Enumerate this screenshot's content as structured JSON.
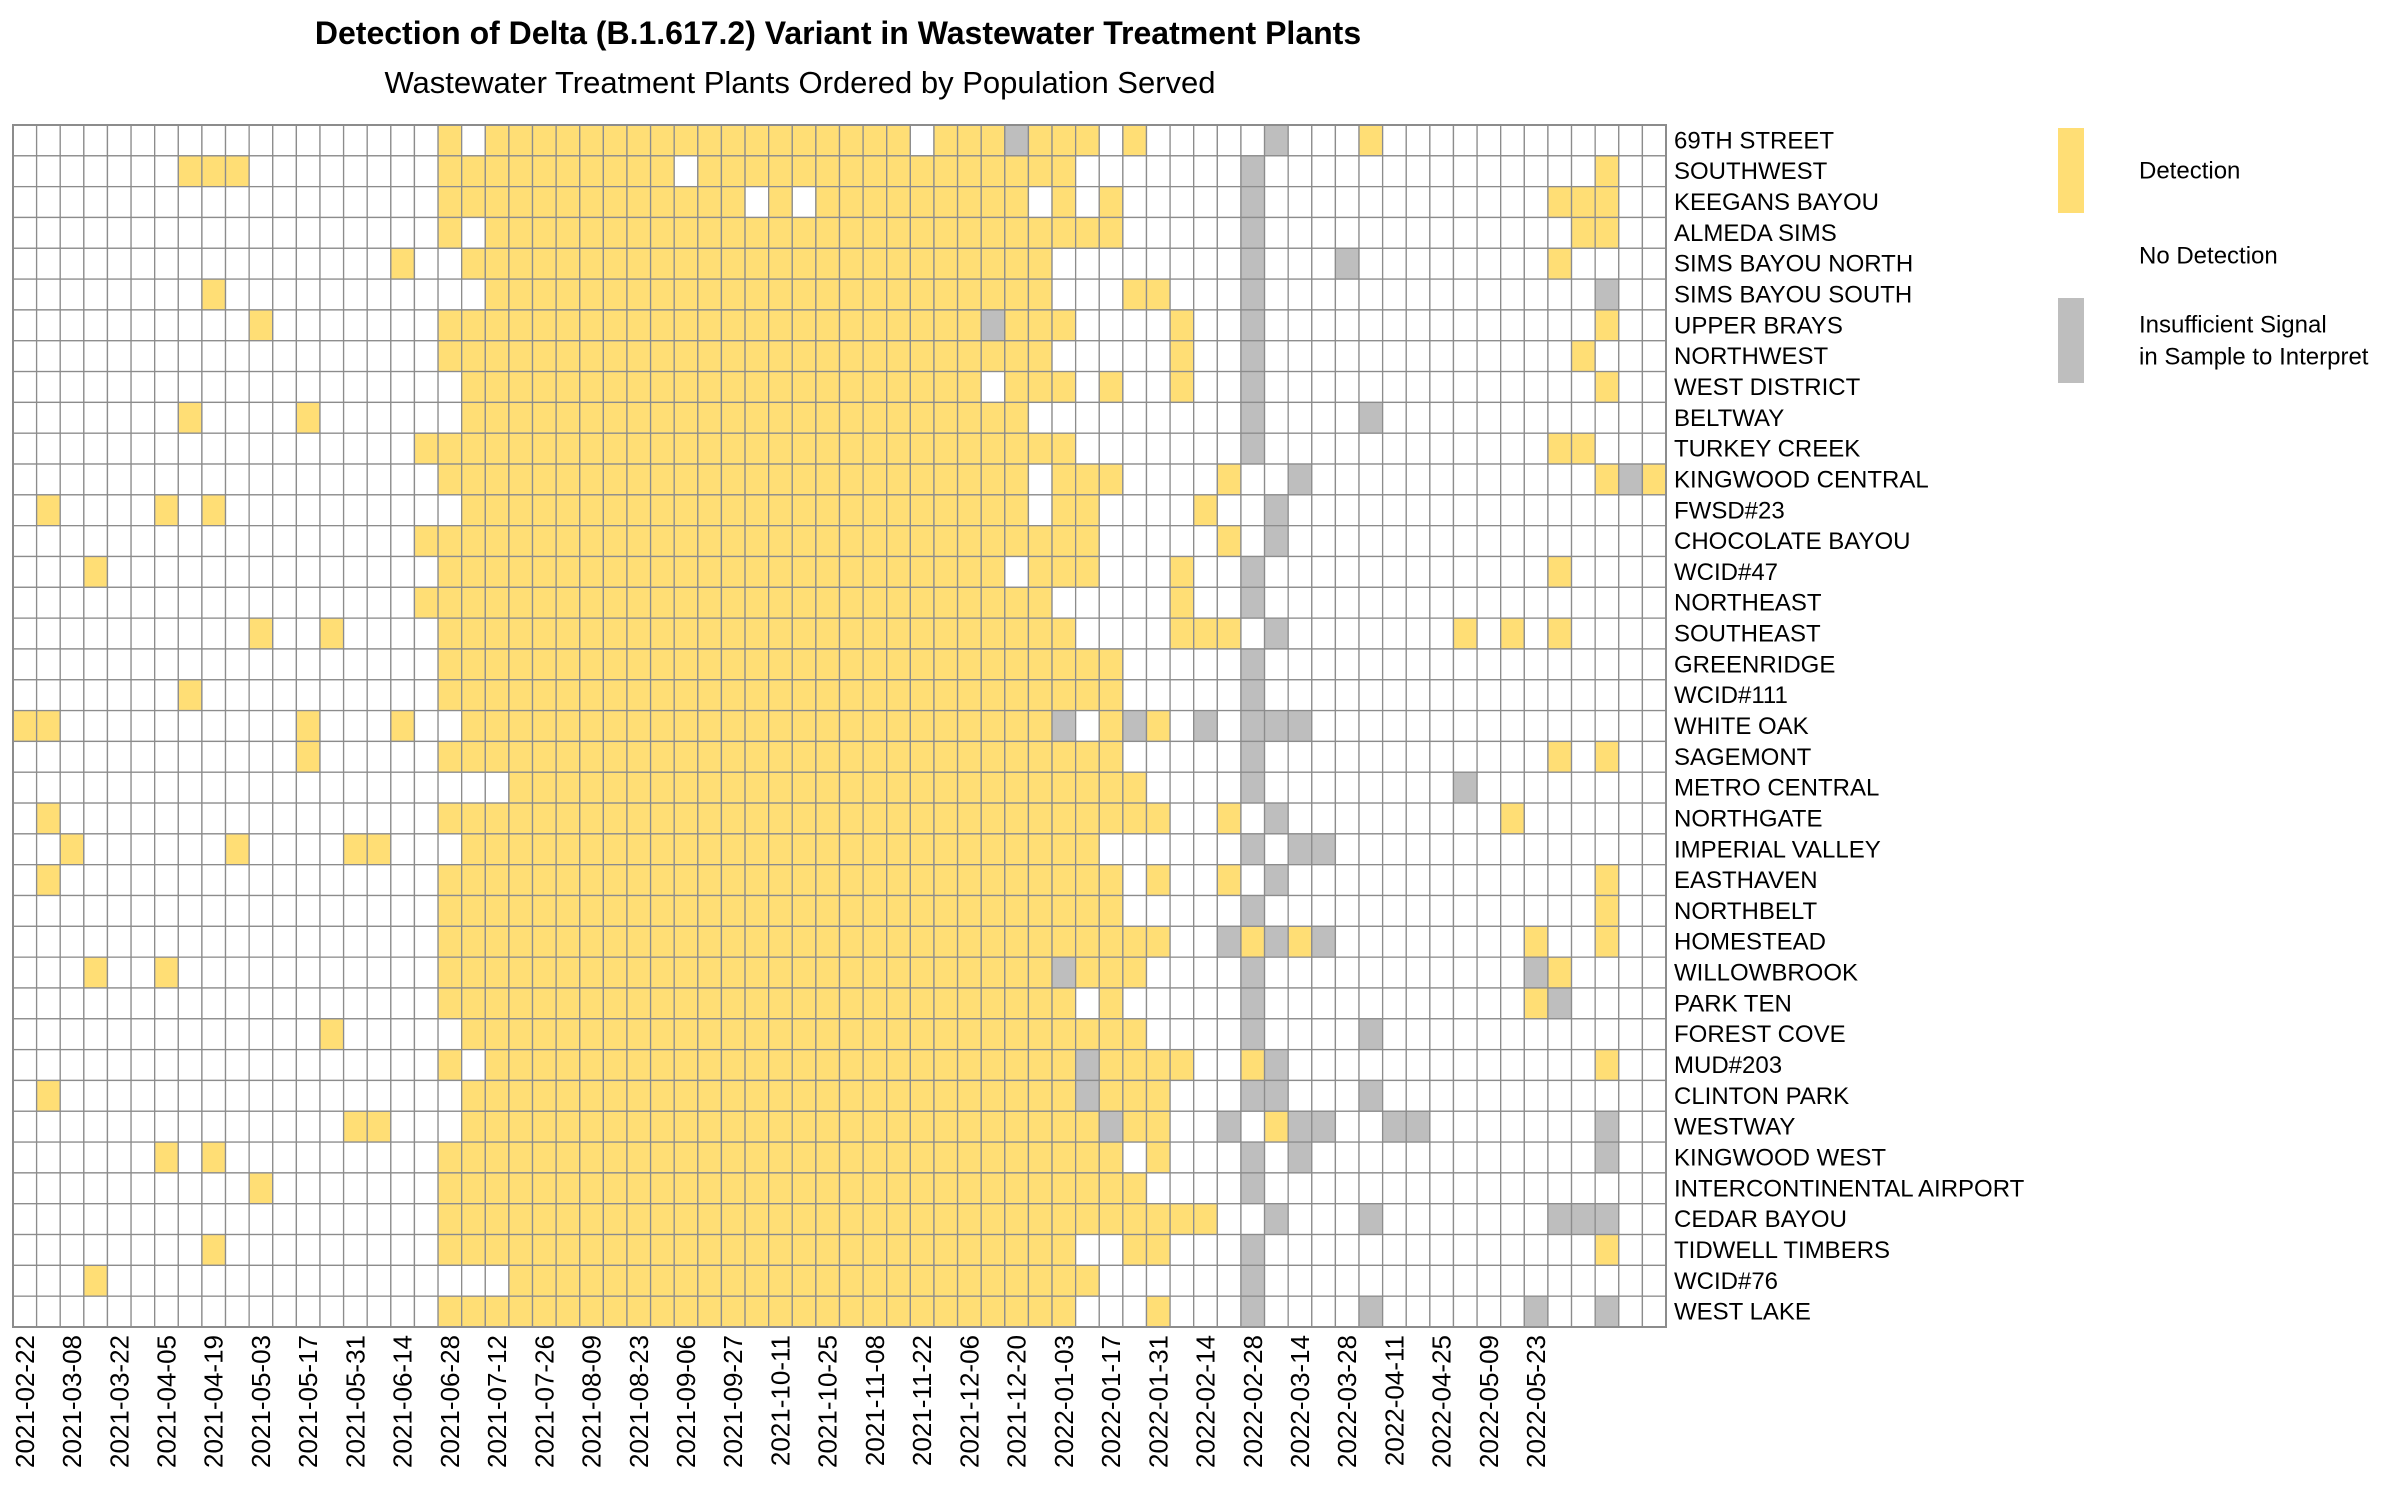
{
  "chart_data": {
    "type": "heatmap",
    "title": "Detection of Delta (B.1.617.2) Variant in Wastewater Treatment Plants",
    "subtitle": "Wastewater Treatment Plants Ordered by Population Served",
    "x_tick_labels": [
      "2021-02-22",
      "2021-03-08",
      "2021-03-22",
      "2021-04-05",
      "2021-04-19",
      "2021-05-03",
      "2021-05-17",
      "2021-05-31",
      "2021-06-14",
      "2021-06-28",
      "2021-07-12",
      "2021-07-26",
      "2021-08-09",
      "2021-08-23",
      "2021-09-06",
      "2021-09-27",
      "2021-10-11",
      "2021-10-25",
      "2021-11-08",
      "2021-11-22",
      "2021-12-06",
      "2021-12-20",
      "2022-01-03",
      "2022-01-17",
      "2022-01-31",
      "2022-02-14",
      "2022-02-28",
      "2022-03-14",
      "2022-03-28",
      "2022-04-11",
      "2022-04-25",
      "2022-05-09",
      "2022-05-23"
    ],
    "columns_per_tick": 2,
    "plants": [
      "69TH STREET",
      "SOUTHWEST",
      "KEEGANS BAYOU",
      "ALMEDA SIMS",
      "SIMS BAYOU NORTH",
      "SIMS BAYOU SOUTH",
      "UPPER BRAYS",
      "NORTHWEST",
      "WEST DISTRICT",
      "BELTWAY",
      "TURKEY CREEK",
      "KINGWOOD CENTRAL",
      "FWSD#23",
      "CHOCOLATE BAYOU",
      "WCID#47",
      "NORTHEAST",
      "SOUTHEAST",
      "GREENRIDGE",
      "WCID#111",
      "WHITE OAK",
      "SAGEMONT",
      "METRO CENTRAL",
      "NORTHGATE",
      "IMPERIAL VALLEY",
      "EASTHAVEN",
      "NORTHBELT",
      "HOMESTEAD",
      "WILLOWBROOK",
      "PARK TEN",
      "FOREST COVE",
      "MUD#203",
      "CLINTON PARK",
      "WESTWAY",
      "KINGWOOD WEST",
      "INTERCONTINENTAL AIRPORT",
      "CEDAR BAYOU",
      "TIDWELL TIMBERS",
      "WCID#76",
      "WEST LAKE"
    ],
    "value_codes": {
      "Y": "Detection",
      "N": "No Detection",
      "G": "Insufficient Signal in Sample to Interpret"
    },
    "rows": [
      "NNNNNNNNNNNNNNNNNNYNYYYYYYYYYYYYYYYYYYNYYYGYYYNYNNNNNGNNNYNNNNNNNNNN",
      "NNNNNNNYYYNNNNNNNNYYYYYYYYYYNYYYYYYYYYYYYYYYYNNNNNNNGNNNNNNNNNNNNNNY",
      "NNNNNNNNNNNNNNNNNNYYYYYYYYYYYYYNYNYYYYYYYYYNYNYNNNNNGNNNNNNNNNNNNYYY",
      "NNNNNNNNNNNNNNNNNNYNYYYYYYYYYYYYYYYYYYYYYYYYYYYNNNNNGNNNNNNNNNNNNNYY",
      "NNNNNNNNNNNNNNNNYNNYYYYYYYYYYYYYYYYYYYYYYYYYNNNNNNNNGNNNGNNNNNNNNYNN",
      "NNNNNNNNYNNNNNNNNNNNYYYYYYYYYYYYYYYYYYYYYYYYNNNYYNNNGNNNNNNNNNNNNNNG",
      "NNNNNNNNNNYNNNNNNNYYYYYYYYYYYYYYYYYYYYYYYGYYYNNNNYNNGNNNNNNNNNNNNNNY",
      "NNNNNNNNNNNNNNNNNNYYYYYYYYYYYYYYYYYYYYYYYYYYNNNNNYNNGNNNNNNNNNNNNNYN",
      "NNNNNNNNNNNNNNNNNNNYYYYYYYYYYYYYYYYYYYYYYNYYYNYNNYNNGNNNNNNNNNNNNNNY",
      "NNNNNNNYNNNNYNNNNNNYYYYYYYYYYYYYYYYYYYYYYYYNNNNNNNNNGNNNNGNNNNNNNNNN",
      "NNNNNNNNNNNNNNNNNYYYYYYYYYYYYYYYYYYYYYYYYYYYYNNNNNNNGNNNNNNNNNNNNYYN",
      "NNNNNNNNNNNNNNNNNNYYYYYYYYYYYYYYYYYYYYYYYYYNYYYNNNNYNNGNNNNNNNNNNNNYGY",
      "NYNNNNYNYNNNNNNNNNNYYYYYYYYYYYYYYYYYYYYYYYYNYYNNNNYNNGNNNNNNNNNNNNNN",
      "NNNNNNNNNNNNNNNNNYYYYYYYYYYYYYYYYYYYYYYYYYYYYYNNNNNYNGNNNNNNNNNNNNNN",
      "NNNYNNNNNNNNNNNNNNYYYYYYYYYYYYYYYYYYYYYYYYNYYYNNNYNNGNNNNNNNNNNNNYNN",
      "NNNNNNNNNNNNNNNNNYYYYYYYYYYYYYYYYYYYYYYYYYYYNNNNNYNNGNNNNNNNNNNNNNNN",
      "NNNNNNNNNNYNNYNNNNYYYYYYYYYYYYYYYYYYYYYYYYYYYNNNNYYYNGNNNNNNNYNYNYNN",
      "NNNNNNNNNNNNNNNNNNYYYYYYYYYYYYYYYYYYYYYYYYYYYYYNNNNNGNNNNNNNNNNNNNNN",
      "NNNNNNNYNNNNNNNNNNYYYYYYYYYYYYYYYYYYYYYYYYYYYYYNNNNNGNNNNNNNNNNNNNNN",
      "YYNNNNNNNNNNYNNNYNNYYYYYYYYYYYYYYYYYYYYYYYYYGNYGYNGNGGGNNNNNNNNNNNNN",
      "NNNNNNNNNNNNYNNNNNYYYYYYYYYYYYYYYYYYYYYYYYYYYYYNNNNNGNNNNNNNNNNNNYNY",
      "NNNNNNNNNNNNNNNNNNNNNYYYYYYYYYYYYYYYYYYYYYYYYYYYNNNNGNNNNNNNNGNNNNNN",
      "NYNNNNNNNNNNNNNNNNYYYYYYYYYYYYYYYYYYYYYYYYYYYYYYYNNYNGNNNNNNNNNYNNNN",
      "NNYNNNNNNYNNNNYYNNNYYYYYYYYYYYYYYYYYYYYYYYYYYYNNNNNNGNGGNNNNNNNNNNNN",
      "NYNNNNNNNNNNNNNNNNYYYYYYYYYYYYYYYYYYYYYYYYYYYYYNYNNYNGNNNNNNNNNNNNNY",
      "NNNNNNNNNNNNNNNNNNYYYYYYYYYYYYYYYYYYYYYYYYYYYYYNNNNNGNNNNNNNNNNNNNNY",
      "NNNNNNNNNNNNNNNNNNYYYYYYYYYYYYYYYYYYYYYYYYYYYYYYYNNGYGYGNNNNNNNNYNNY",
      "NNNYNNYNNNNNNNNNNNYYYYYYYYYYYYYYYYYYYYYYYYYYGYYYNNNNGNNNNNNNNNNNGYNN",
      "NNNNNNNNNNNNNNNNNNYYYYYYYYYYYYYYYYYYYYYYYYYYYNYNNNNNGNNNNNNNNNNNYGNN",
      "NNNNNNNNNNNNNYNNNNNYYYYYYYYYYYYYYYYYYYYYYYYYYYYYNNNNGNNNNGNNNNNNNNNN",
      "NNNNNNNNNNNNNNNNNNYNYYYYYYYYYYYYYYYYYYYYYYYYYGYYYYNNYGNNNNNNNNNNNNNY",
      "NYNNNNNNNNNNNNNNNNNYYYYYYYYYYYYYYYYYYYYYYYYYYGYYYNNNGGNNNGNNNNNNNNNN",
      "NNNNNNNNNNNNNNYYNNNYYYYYYYYYYYYYYYYYYYYYYYYYYYGYYNNGNYGGNNGGNNNNNNNG",
      "NNNNNNYNYNNNNNNNNNYYYYYYYYYYYYYYYYYYYYYYYYYYYYYNYNNNGNGNNNNNNNNNNNNG",
      "NNNNNNNNNNYNNNNNNNYYYYYYYYYYYYYYYYYYYYYYYYYYYYYYNNNNGNNNNNNNNNNNNNNN",
      "NNNNNNNNNNNNNNNNNNYYYYYYYYYYYYYYYYYYYYYYYYYYYYYYYYYNNGNNNGNNNNNNNGGG",
      "NNNNNNNNYNNNNNNNNNYYYYYYYYYYYYYYYYYYYYYYYYYYYNNYYNNNGNNNNNNNNNNNNNNY",
      "NNNYNNNNNNNNNNNNNNNNNYYYYYYYYYYYYYYYYYYYYYYYYYNNNNNNGNNNNNNNNNNNNNNN",
      "NNNNNNNNNNNNNNNNNNYYYYYYYYYYYYYYYYYYYYYYYYYYYNNNYNNNGNNNNGNNNNNNGNNG"
    ],
    "legend": [
      {
        "code": "Y",
        "label_lines": [
          "Detection"
        ]
      },
      {
        "code": "N",
        "label_lines": [
          "No Detection"
        ]
      },
      {
        "code": "G",
        "label_lines": [
          "Insufficient Signal",
          " in Sample to Interpret"
        ]
      }
    ],
    "colors": {
      "Y": "#FFDE75",
      "N": "#FFFFFF",
      "G": "#BEBEBE",
      "grid": "#8C8C8C"
    }
  }
}
